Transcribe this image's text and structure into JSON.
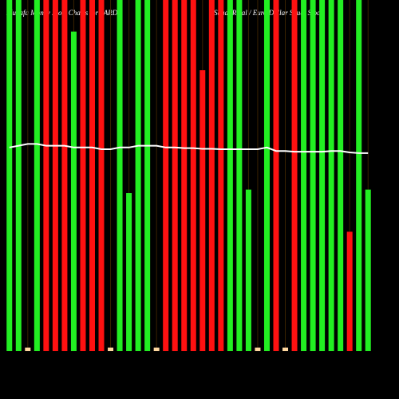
{
  "chart_data": {
    "type": "bar",
    "title": "Munafa Money Flow Charts for SARDI",
    "subtitle": "Saudi Riyal / Euro Dollar Saudi Stock",
    "values": [
      100,
      100,
      1,
      100,
      100,
      100,
      100,
      91,
      100,
      100,
      100,
      1,
      100,
      45,
      100,
      100,
      1,
      100,
      100,
      100,
      100,
      80,
      100,
      100,
      100,
      100,
      46,
      1,
      100,
      100,
      1,
      100,
      100,
      100,
      100,
      100,
      100,
      34,
      100,
      46
    ],
    "colors": [
      "#22ee22",
      "#22ee22",
      "#ffd8a0",
      "#22ee22",
      "#ff1111",
      "#ff1111",
      "#ff1111",
      "#22ee22",
      "#ff1111",
      "#ff1111",
      "#ff1111",
      "#ffd8a0",
      "#22ee22",
      "#22ee22",
      "#22ee22",
      "#22ee22",
      "#ffd8a0",
      "#ff1111",
      "#ff1111",
      "#ff1111",
      "#ff1111",
      "#ff1111",
      "#ff1111",
      "#ff1111",
      "#22ee22",
      "#22ee22",
      "#22ee22",
      "#ffd8a0",
      "#22ee22",
      "#ff1111",
      "#ffd8a0",
      "#ff1111",
      "#22ee22",
      "#22ee22",
      "#22ee22",
      "#22ee22",
      "#22ee22",
      "#ff1111",
      "#22ee22",
      "#22ee22"
    ],
    "line": {
      "color": "#ffffff",
      "values": [
        58,
        58.5,
        59,
        59,
        58.5,
        58.5,
        58.5,
        58,
        58,
        58,
        57.5,
        57.5,
        58,
        58,
        58.5,
        58.5,
        58.5,
        58,
        58,
        57.8,
        57.8,
        57.6,
        57.6,
        57.5,
        57.5,
        57.5,
        57.5,
        57.5,
        58,
        57,
        57,
        56.8,
        56.8,
        56.8,
        56.8,
        57,
        57,
        56.6,
        56.4,
        56.4
      ]
    },
    "ylim": [
      0,
      100
    ]
  }
}
